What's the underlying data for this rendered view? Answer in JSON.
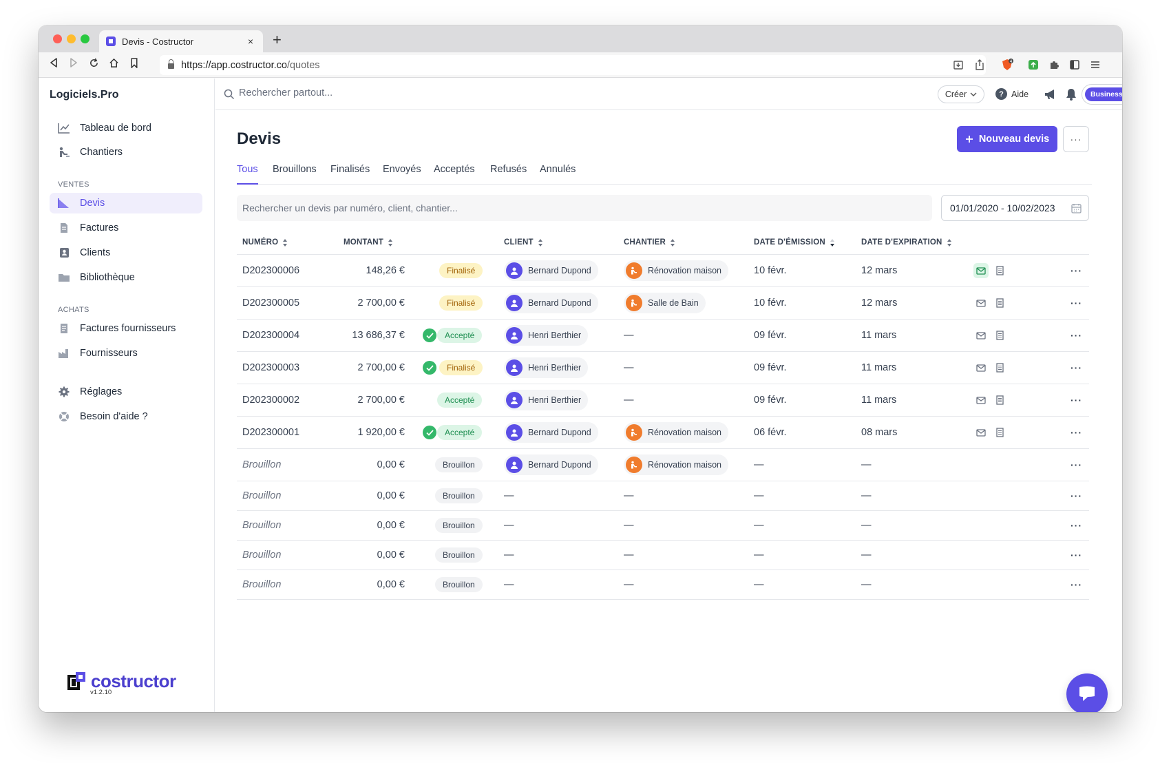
{
  "browser": {
    "tab_title": "Devis - Costructor",
    "url_host": "https://app.costructor.co",
    "url_path": "/quotes",
    "extension_badge": "4"
  },
  "sidebar": {
    "brand": "Logiciels.Pro",
    "items_top": [
      {
        "label": "Tableau de bord",
        "icon": "chart-line-icon"
      },
      {
        "label": "Chantiers",
        "icon": "worker-icon"
      }
    ],
    "section_ventes": "VENTES",
    "items_ventes": [
      {
        "label": "Devis",
        "icon": "quote-chart-icon",
        "active": true
      },
      {
        "label": "Factures",
        "icon": "invoice-icon"
      },
      {
        "label": "Clients",
        "icon": "contacts-icon"
      },
      {
        "label": "Bibliothèque",
        "icon": "folder-icon"
      }
    ],
    "section_achats": "ACHATS",
    "items_achats": [
      {
        "label": "Factures fournisseurs",
        "icon": "supplier-invoice-icon"
      },
      {
        "label": "Fournisseurs",
        "icon": "factory-icon"
      }
    ],
    "items_bottom": [
      {
        "label": "Réglages",
        "icon": "gear-icon"
      },
      {
        "label": "Besoin d'aide ?",
        "icon": "lifebuoy-icon"
      }
    ],
    "logo_text": "costructor",
    "version": "v1.2.10"
  },
  "topbar": {
    "search_placeholder": "Rechercher partout...",
    "create_label": "Créer",
    "help_label": "Aide",
    "plan_label": "Business"
  },
  "page": {
    "title": "Devis",
    "new_button": "Nouveau devis",
    "more_label": "···",
    "tabs": [
      "Tous",
      "Brouillons",
      "Finalisés",
      "Envoyés",
      "Acceptés",
      "Refusés",
      "Annulés"
    ],
    "active_tab": "Tous",
    "filter_placeholder": "Rechercher un devis par numéro, client, chantier...",
    "date_range": "01/01/2020 - 10/02/2023"
  },
  "table": {
    "headers": {
      "number": "NUMÉRO",
      "amount": "MONTANT",
      "client": "CLIENT",
      "site": "CHANTIER",
      "issue_date": "DATE D'ÉMISSION",
      "expiry_date": "DATE D'EXPIRATION"
    },
    "rows": [
      {
        "number": "D202300006",
        "amount": "148,26 €",
        "signed": false,
        "status": "Finalisé",
        "status_kind": "finalise",
        "client": "Bernard Dupond",
        "site": "Rénovation maison",
        "issue": "10 févr.",
        "expiry": "12 mars",
        "sent": true,
        "draft": false
      },
      {
        "number": "D202300005",
        "amount": "2 700,00 €",
        "signed": false,
        "status": "Finalisé",
        "status_kind": "finalise",
        "client": "Bernard Dupond",
        "site": "Salle de Bain",
        "issue": "10 févr.",
        "expiry": "12 mars",
        "sent": false,
        "draft": false
      },
      {
        "number": "D202300004",
        "amount": "13 686,37 €",
        "signed": true,
        "status": "Accepté",
        "status_kind": "accepte",
        "client": "Henri Berthier",
        "site": "—",
        "issue": "09 févr.",
        "expiry": "11 mars",
        "sent": false,
        "draft": false
      },
      {
        "number": "D202300003",
        "amount": "2 700,00 €",
        "signed": true,
        "status": "Finalisé",
        "status_kind": "finalise",
        "client": "Henri Berthier",
        "site": "—",
        "issue": "09 févr.",
        "expiry": "11 mars",
        "sent": false,
        "draft": false
      },
      {
        "number": "D202300002",
        "amount": "2 700,00 €",
        "signed": false,
        "status": "Accepté",
        "status_kind": "accepte",
        "client": "Henri Berthier",
        "site": "—",
        "issue": "09 févr.",
        "expiry": "11 mars",
        "sent": false,
        "draft": false
      },
      {
        "number": "D202300001",
        "amount": "1 920,00 €",
        "signed": true,
        "status": "Accepté",
        "status_kind": "accepte",
        "client": "Bernard Dupond",
        "site": "Rénovation maison",
        "issue": "06 févr.",
        "expiry": "08 mars",
        "sent": false,
        "draft": false
      },
      {
        "number": "Brouillon",
        "amount": "0,00 €",
        "signed": false,
        "status": "Brouillon",
        "status_kind": "brouillon",
        "client": "Bernard Dupond",
        "site": "Rénovation maison",
        "issue": "—",
        "expiry": "—",
        "sent": false,
        "draft": true
      },
      {
        "number": "Brouillon",
        "amount": "0,00 €",
        "signed": false,
        "status": "Brouillon",
        "status_kind": "brouillon",
        "client": "—",
        "site": "—",
        "issue": "—",
        "expiry": "—",
        "sent": false,
        "draft": true
      },
      {
        "number": "Brouillon",
        "amount": "0,00 €",
        "signed": false,
        "status": "Brouillon",
        "status_kind": "brouillon",
        "client": "—",
        "site": "—",
        "issue": "—",
        "expiry": "—",
        "sent": false,
        "draft": true
      },
      {
        "number": "Brouillon",
        "amount": "0,00 €",
        "signed": false,
        "status": "Brouillon",
        "status_kind": "brouillon",
        "client": "—",
        "site": "—",
        "issue": "—",
        "expiry": "—",
        "sent": false,
        "draft": true
      },
      {
        "number": "Brouillon",
        "amount": "0,00 €",
        "signed": false,
        "status": "Brouillon",
        "status_kind": "brouillon",
        "client": "—",
        "site": "—",
        "issue": "—",
        "expiry": "—",
        "sent": false,
        "draft": true
      }
    ],
    "row_menu_label": "···"
  },
  "colors": {
    "accent": "#5b4ee6",
    "finalise_bg": "#fdf3c4",
    "accepte_bg": "#dcf5e6",
    "site_avatar": "#f07c2d"
  }
}
